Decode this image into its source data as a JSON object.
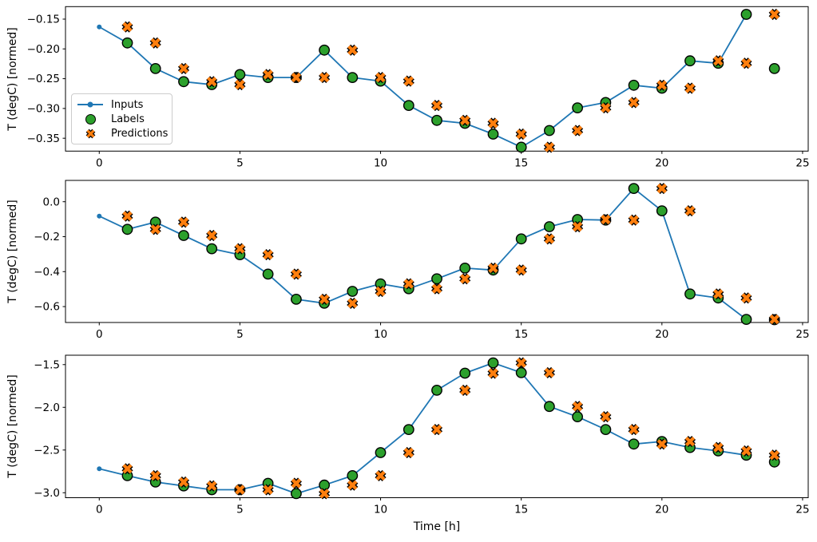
{
  "figure": {
    "background": "#ffffff",
    "xlabel": "Time [h]",
    "ylabel": "T (degC) [normed]",
    "colors": {
      "inputs": "#1f77b4",
      "labels": "#2ca02c",
      "predictions": "#ff7f0e",
      "axis": "#000000",
      "legend_border": "#cccccc"
    },
    "legend": {
      "position": "center left of top subplot",
      "items": [
        {
          "label": "Inputs",
          "marker": "line-with-dot"
        },
        {
          "label": "Labels",
          "marker": "circle"
        },
        {
          "label": "Predictions",
          "marker": "x-cross"
        }
      ]
    },
    "xticks": {
      "values": [
        0,
        5,
        10,
        15,
        20,
        25
      ],
      "labels": [
        "0",
        "5",
        "10",
        "15",
        "20",
        "25"
      ]
    }
  },
  "chart_data": [
    {
      "type": "line",
      "title": "",
      "xlabel": "",
      "ylabel": "T (degC) [normed]",
      "xlim": [
        -1.2,
        25.2
      ],
      "ylim": [
        -0.3716,
        -0.129
      ],
      "grid": false,
      "yticks": {
        "values": [
          -0.15,
          -0.2,
          -0.25,
          -0.3,
          -0.35
        ],
        "labels": [
          "−0.15",
          "−0.20",
          "−0.25",
          "−0.30",
          "−0.35"
        ]
      },
      "series": [
        {
          "name": "Inputs",
          "style": "line+dot",
          "x": [
            0,
            1,
            2,
            3,
            4,
            5,
            6,
            7,
            8,
            9,
            10,
            11,
            12,
            13,
            14,
            15,
            16,
            17,
            18,
            19,
            20,
            21,
            22,
            23
          ],
          "values": [
            -0.163,
            -0.19,
            -0.233,
            -0.255,
            -0.26,
            -0.243,
            -0.248,
            -0.248,
            -0.202,
            -0.248,
            -0.254,
            -0.295,
            -0.32,
            -0.325,
            -0.343,
            -0.365,
            -0.337,
            -0.299,
            -0.29,
            -0.261,
            -0.266,
            -0.22,
            -0.224,
            -0.142
          ]
        },
        {
          "name": "Labels",
          "style": "circle",
          "x": [
            1,
            2,
            3,
            4,
            5,
            6,
            7,
            8,
            9,
            10,
            11,
            12,
            13,
            14,
            15,
            16,
            17,
            18,
            19,
            20,
            21,
            22,
            23,
            24
          ],
          "values": [
            -0.19,
            -0.233,
            -0.255,
            -0.26,
            -0.243,
            -0.248,
            -0.248,
            -0.202,
            -0.248,
            -0.254,
            -0.295,
            -0.32,
            -0.325,
            -0.343,
            -0.365,
            -0.337,
            -0.299,
            -0.29,
            -0.261,
            -0.266,
            -0.22,
            -0.224,
            -0.142,
            -0.233
          ]
        },
        {
          "name": "Predictions",
          "style": "x",
          "x": [
            1,
            2,
            3,
            4,
            5,
            6,
            7,
            8,
            9,
            10,
            11,
            12,
            13,
            14,
            15,
            16,
            17,
            18,
            19,
            20,
            21,
            22,
            23,
            24
          ],
          "values": [
            -0.163,
            -0.19,
            -0.233,
            -0.255,
            -0.26,
            -0.243,
            -0.248,
            -0.248,
            -0.202,
            -0.248,
            -0.254,
            -0.295,
            -0.32,
            -0.325,
            -0.343,
            -0.365,
            -0.337,
            -0.299,
            -0.29,
            -0.261,
            -0.266,
            -0.22,
            -0.224,
            -0.142
          ]
        }
      ]
    },
    {
      "type": "line",
      "title": "",
      "xlabel": "",
      "ylabel": "T (degC) [normed]",
      "xlim": [
        -1.2,
        25.2
      ],
      "ylim": [
        -0.691,
        0.122
      ],
      "grid": false,
      "yticks": {
        "values": [
          0.0,
          -0.2,
          -0.4,
          -0.6
        ],
        "labels": [
          "0.0",
          "−0.2",
          "−0.4",
          "−0.6"
        ]
      },
      "series": [
        {
          "name": "Inputs",
          "style": "line+dot",
          "x": [
            0,
            1,
            2,
            3,
            4,
            5,
            6,
            7,
            8,
            9,
            10,
            11,
            12,
            13,
            14,
            15,
            16,
            17,
            18,
            19,
            20,
            21,
            22,
            23
          ],
          "values": [
            -0.082,
            -0.158,
            -0.117,
            -0.193,
            -0.269,
            -0.303,
            -0.414,
            -0.558,
            -0.581,
            -0.513,
            -0.47,
            -0.498,
            -0.441,
            -0.38,
            -0.391,
            -0.213,
            -0.143,
            -0.102,
            -0.105,
            0.076,
            -0.052,
            -0.528,
            -0.551,
            -0.673
          ]
        },
        {
          "name": "Labels",
          "style": "circle",
          "x": [
            1,
            2,
            3,
            4,
            5,
            6,
            7,
            8,
            9,
            10,
            11,
            12,
            13,
            14,
            15,
            16,
            17,
            18,
            19,
            20,
            21,
            22,
            23,
            24
          ],
          "values": [
            -0.158,
            -0.117,
            -0.193,
            -0.269,
            -0.303,
            -0.414,
            -0.558,
            -0.581,
            -0.513,
            -0.47,
            -0.498,
            -0.441,
            -0.38,
            -0.391,
            -0.213,
            -0.143,
            -0.102,
            -0.105,
            0.076,
            -0.052,
            -0.528,
            -0.551,
            -0.673,
            -0.675
          ]
        },
        {
          "name": "Predictions",
          "style": "x",
          "x": [
            1,
            2,
            3,
            4,
            5,
            6,
            7,
            8,
            9,
            10,
            11,
            12,
            13,
            14,
            15,
            16,
            17,
            18,
            19,
            20,
            21,
            22,
            23,
            24
          ],
          "values": [
            -0.082,
            -0.158,
            -0.117,
            -0.193,
            -0.269,
            -0.303,
            -0.414,
            -0.558,
            -0.581,
            -0.513,
            -0.47,
            -0.498,
            -0.441,
            -0.38,
            -0.391,
            -0.213,
            -0.143,
            -0.102,
            -0.105,
            0.076,
            -0.052,
            -0.528,
            -0.551,
            -0.673
          ]
        }
      ]
    },
    {
      "type": "line",
      "title": "",
      "xlabel": "Time [h]",
      "ylabel": "T (degC) [normed]",
      "xlim": [
        -1.2,
        25.2
      ],
      "ylim": [
        -3.058,
        -1.39
      ],
      "grid": false,
      "yticks": {
        "values": [
          -1.5,
          -2.0,
          -2.5,
          -3.0
        ],
        "labels": [
          "−1.5",
          "−2.0",
          "−2.5",
          "−3.0"
        ]
      },
      "series": [
        {
          "name": "Inputs",
          "style": "line+dot",
          "x": [
            0,
            1,
            2,
            3,
            4,
            5,
            6,
            7,
            8,
            9,
            10,
            11,
            12,
            13,
            14,
            15,
            16,
            17,
            18,
            19,
            20,
            21,
            22,
            23
          ],
          "values": [
            -2.72,
            -2.8,
            -2.875,
            -2.92,
            -2.965,
            -2.965,
            -2.89,
            -3.01,
            -2.91,
            -2.8,
            -2.53,
            -2.26,
            -1.8,
            -1.6,
            -1.48,
            -1.595,
            -1.99,
            -2.11,
            -2.26,
            -2.43,
            -2.4,
            -2.47,
            -2.51,
            -2.56
          ]
        },
        {
          "name": "Labels",
          "style": "circle",
          "x": [
            1,
            2,
            3,
            4,
            5,
            6,
            7,
            8,
            9,
            10,
            11,
            12,
            13,
            14,
            15,
            16,
            17,
            18,
            19,
            20,
            21,
            22,
            23,
            24
          ],
          "values": [
            -2.8,
            -2.875,
            -2.92,
            -2.965,
            -2.965,
            -2.89,
            -3.01,
            -2.91,
            -2.8,
            -2.53,
            -2.26,
            -1.8,
            -1.6,
            -1.48,
            -1.595,
            -1.99,
            -2.11,
            -2.26,
            -2.43,
            -2.4,
            -2.47,
            -2.51,
            -2.56,
            -2.64
          ]
        },
        {
          "name": "Predictions",
          "style": "x",
          "x": [
            1,
            2,
            3,
            4,
            5,
            6,
            7,
            8,
            9,
            10,
            11,
            12,
            13,
            14,
            15,
            16,
            17,
            18,
            19,
            20,
            21,
            22,
            23,
            24
          ],
          "values": [
            -2.72,
            -2.8,
            -2.875,
            -2.92,
            -2.965,
            -2.965,
            -2.89,
            -3.01,
            -2.91,
            -2.8,
            -2.53,
            -2.26,
            -1.8,
            -1.6,
            -1.48,
            -1.595,
            -1.99,
            -2.11,
            -2.26,
            -2.43,
            -2.4,
            -2.47,
            -2.51,
            -2.56
          ]
        }
      ]
    }
  ]
}
